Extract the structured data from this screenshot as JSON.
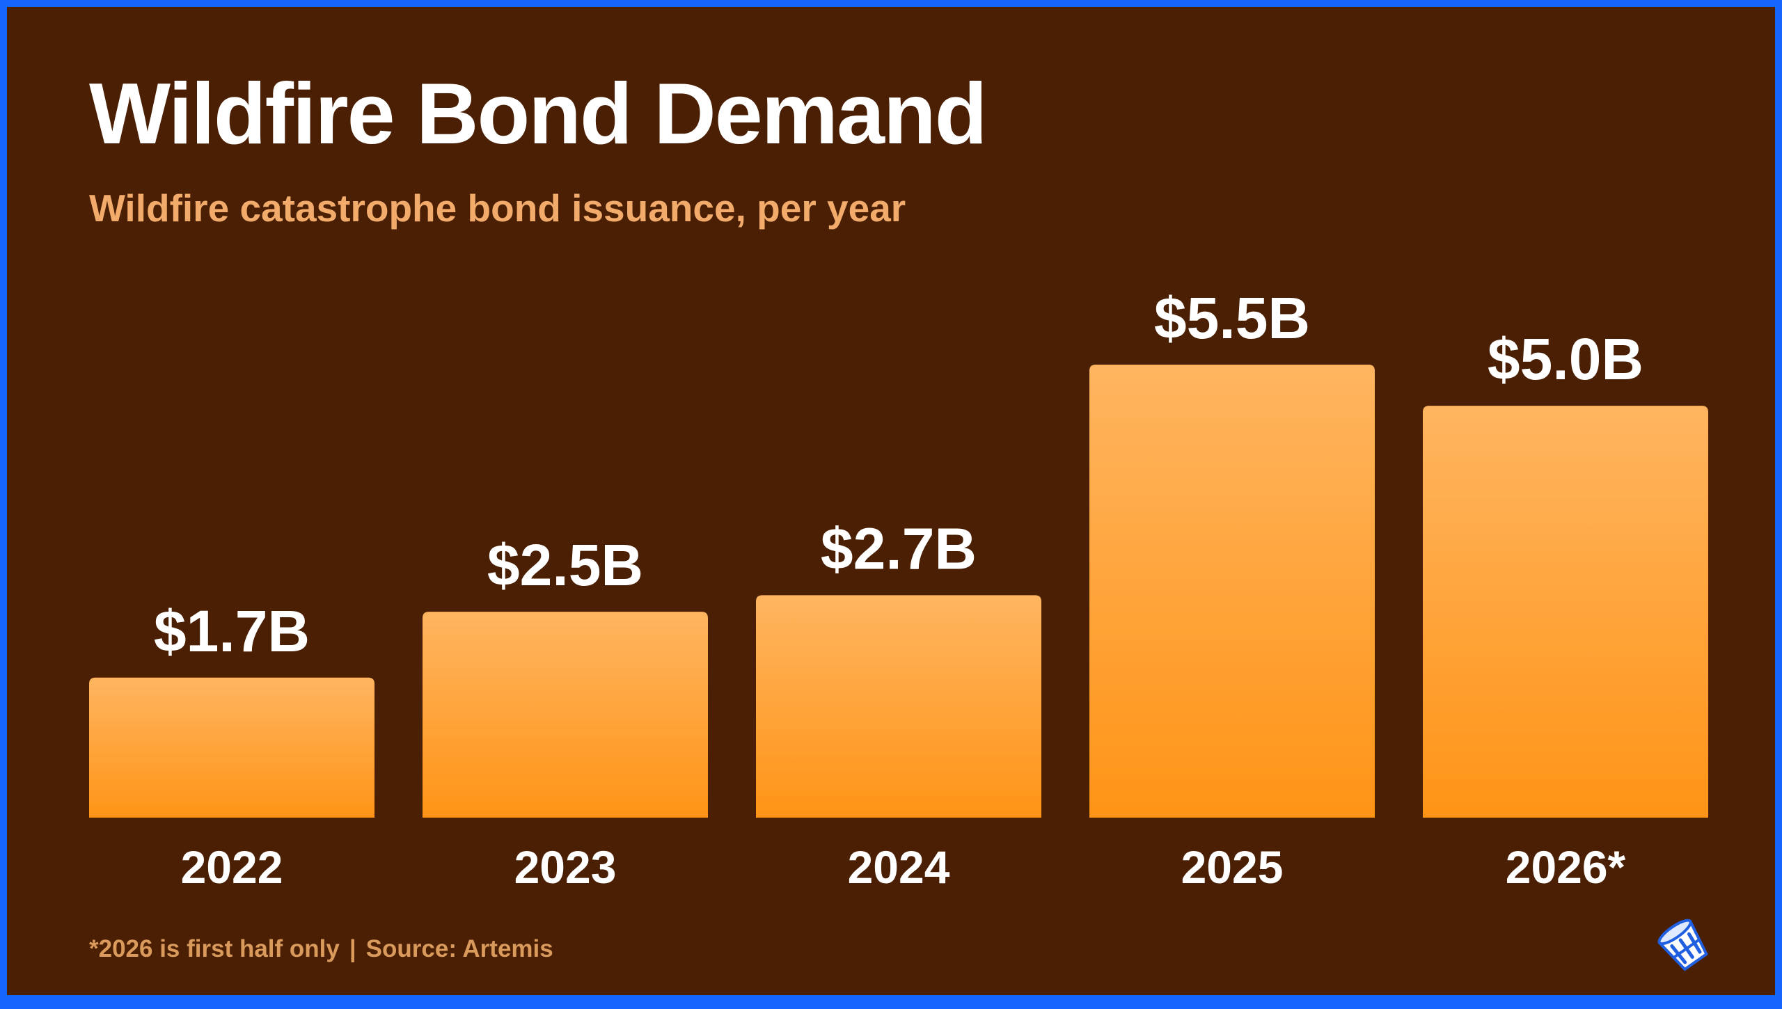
{
  "title": "Wildfire Bond Demand",
  "subtitle": "Wildfire catastrophe bond issuance, per year",
  "footnote": {
    "note": "*2026 is first half only",
    "separator": "|",
    "source": "Source: Artemis"
  },
  "logo": {
    "icon": "bucket-logo-icon"
  },
  "colors": {
    "background": "#4a1f03",
    "frame": "#1565ff",
    "bar_top": "#ffb560",
    "bar_bottom": "#ff9416",
    "subtitle": "#f2ab6a"
  },
  "chart_data": {
    "type": "bar",
    "categories": [
      "2022",
      "2023",
      "2024",
      "2025",
      "2026*"
    ],
    "values": [
      1.7,
      2.5,
      2.7,
      5.5,
      5.0
    ],
    "value_labels": [
      "$1.7B",
      "$2.5B",
      "$2.7B",
      "$5.5B",
      "$5.0B"
    ],
    "title": "Wildfire Bond Demand",
    "subtitle": "Wildfire catastrophe bond issuance, per year",
    "ylim": [
      0,
      5.5
    ],
    "grid": false,
    "legend": "none"
  }
}
